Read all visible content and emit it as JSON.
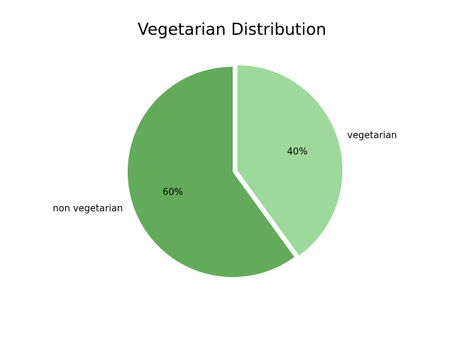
{
  "chart_data": {
    "type": "pie",
    "title": "Vegetarian Distribution",
    "slices": [
      {
        "label": "vegetarian",
        "value": 40,
        "pct_label": "40%",
        "color": "#9dd99a",
        "exploded": true
      },
      {
        "label": "non vegetarian",
        "value": 60,
        "pct_label": "60%",
        "color": "#63ab5a",
        "exploded": false
      }
    ],
    "start_angle_deg": 90,
    "direction": "clockwise"
  }
}
